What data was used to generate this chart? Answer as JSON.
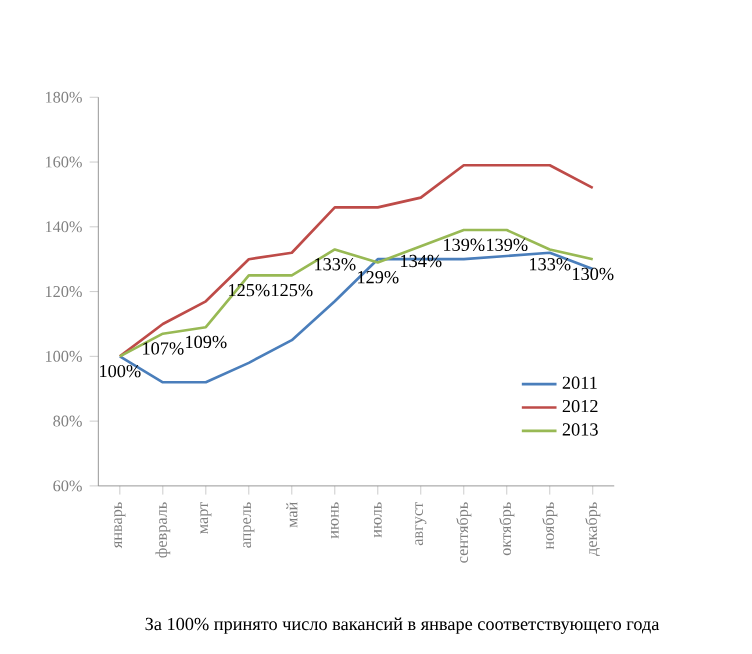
{
  "chart_data": {
    "type": "line",
    "categories": [
      "январь",
      "февраль",
      "март",
      "апрель",
      "май",
      "июнь",
      "июль",
      "август",
      "сентябрь",
      "октябрь",
      "ноябрь",
      "декабрь"
    ],
    "series": [
      {
        "name": "2011",
        "color": "#4a7ebb",
        "values": [
          100,
          92,
          92,
          98,
          105,
          117,
          130,
          130,
          130,
          131,
          132,
          127
        ]
      },
      {
        "name": "2012",
        "color": "#be4b48",
        "values": [
          100,
          110,
          117,
          130,
          132,
          146,
          146,
          149,
          159,
          159,
          159,
          152
        ]
      },
      {
        "name": "2013",
        "color": "#98b954",
        "values": [
          100,
          107,
          109,
          125,
          125,
          133,
          129,
          134,
          139,
          139,
          133,
          130
        ],
        "value_labels": [
          "100%",
          "107%",
          "109%",
          "125%",
          "125%",
          "133%",
          "129%",
          "134%",
          "139%",
          "139%",
          "133%",
          "130%"
        ]
      }
    ],
    "ylim": [
      60,
      180
    ],
    "yticks": [
      {
        "value": 60,
        "label": "60%"
      },
      {
        "value": 80,
        "label": "80%"
      },
      {
        "value": 100,
        "label": "100%"
      },
      {
        "value": 120,
        "label": "120%"
      },
      {
        "value": 140,
        "label": "140%"
      },
      {
        "value": 160,
        "label": "160%"
      },
      {
        "value": 180,
        "label": "180%"
      }
    ],
    "grid": false,
    "legend": "bottom right",
    "marker": "none",
    "line_style": "solid",
    "annotations": [
      "За 100% принято число вакансий в январе соответствующего года"
    ]
  }
}
